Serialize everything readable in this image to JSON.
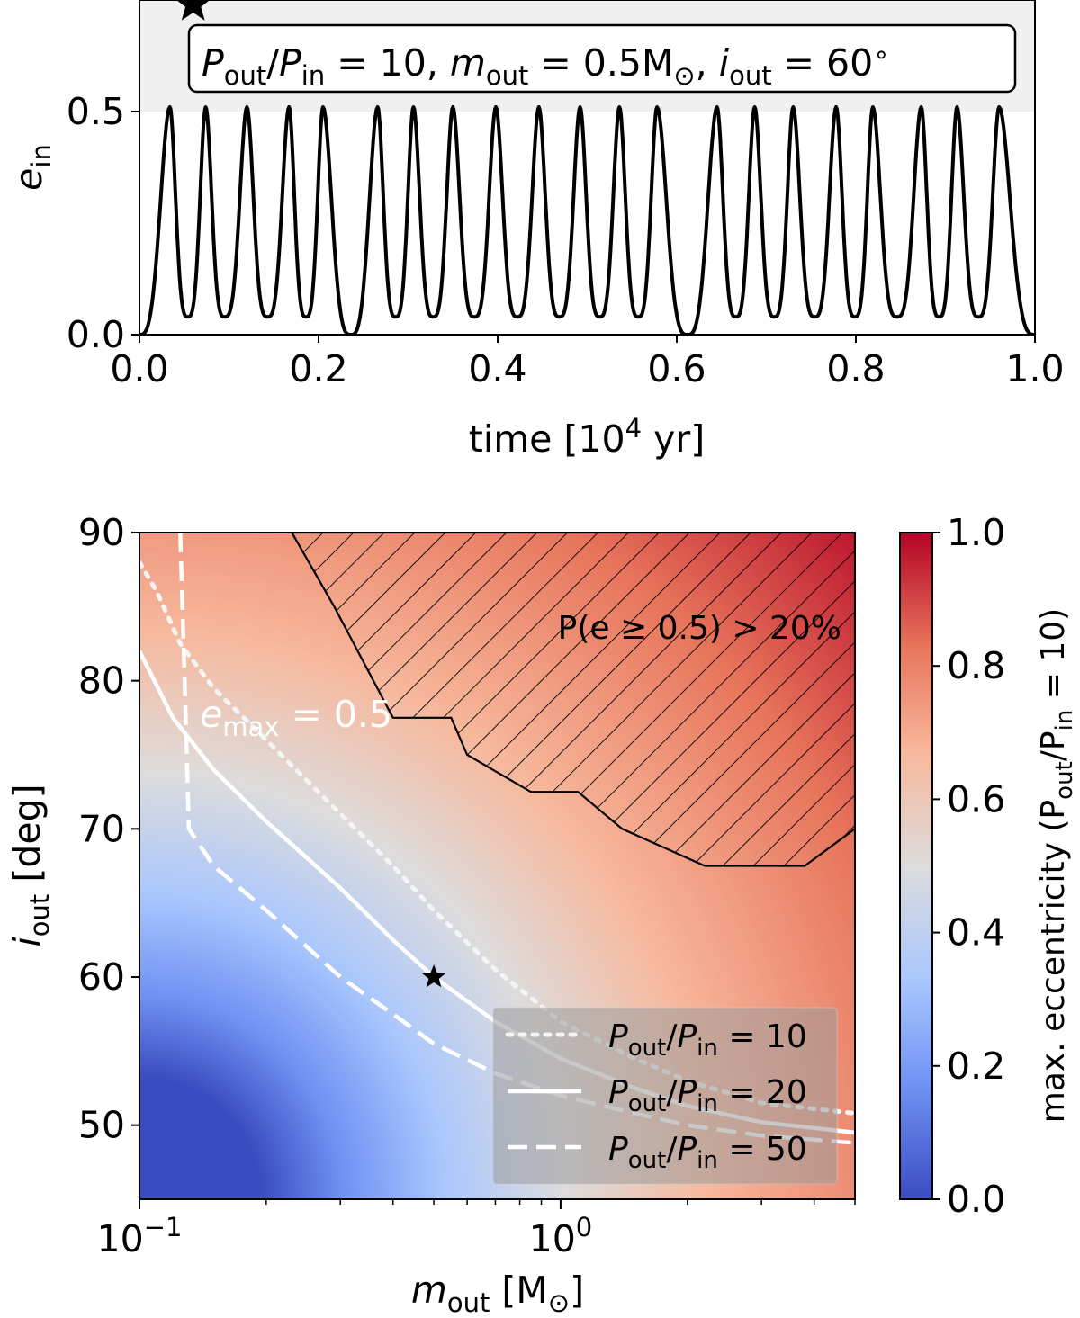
{
  "chart_data": [
    {
      "type": "line",
      "panel": "top",
      "title": "",
      "xlabel": "time [10",
      "xlabel_sup": "4",
      "xlabel_tail": " yr]",
      "ylabel": "e",
      "ylabel_sub": "in",
      "xlim": [
        0.0,
        1.0
      ],
      "ylim": [
        0.0,
        0.75
      ],
      "xticks": [
        "0.0",
        "0.2",
        "0.4",
        "0.6",
        "0.8",
        "1.0"
      ],
      "xtick_values": [
        0.0,
        0.2,
        0.4,
        0.6,
        0.8,
        1.0
      ],
      "yticks": [
        "0.0",
        "0.5"
      ],
      "ytick_values": [
        0.0,
        0.5
      ],
      "shaded_region": {
        "from": 0.5,
        "to": 0.75,
        "color": "#f0f0f0"
      },
      "series": [
        {
          "name": "e_in",
          "color": "#000000",
          "peak_times": [
            0.034,
            0.074,
            0.12,
            0.167,
            0.205,
            0.266,
            0.306,
            0.35,
            0.398,
            0.446,
            0.492,
            0.536,
            0.578,
            0.645,
            0.687,
            0.73,
            0.778,
            0.819,
            0.873,
            0.913,
            0.96
          ],
          "peak_value": 0.51,
          "trough_times": [
            0.0,
            0.054,
            0.095,
            0.143,
            0.186,
            0.236,
            0.286,
            0.328,
            0.374,
            0.422,
            0.469,
            0.514,
            0.557,
            0.612,
            0.666,
            0.709,
            0.754,
            0.799,
            0.846,
            0.893,
            0.937,
            1.0
          ],
          "trough_values": [
            0.0,
            0.04,
            0.04,
            0.04,
            0.04,
            0.0,
            0.04,
            0.04,
            0.04,
            0.04,
            0.04,
            0.04,
            0.04,
            0.0,
            0.04,
            0.04,
            0.04,
            0.04,
            0.04,
            0.04,
            0.04,
            0.0
          ]
        }
      ],
      "marker": {
        "symbol": "star",
        "x": 0.06,
        "y": 0.74
      },
      "annotation": {
        "p_sym": "P",
        "out": "out",
        "slash": "/",
        "in": "in",
        "eq10": " = 10, ",
        "m_sym": "m",
        "eq_mass": " = 0.5M",
        "sun": "⊙",
        "comma": ", ",
        "i_sym": "i",
        "eq_inc": " = 60",
        "deg": "∘"
      }
    },
    {
      "type": "heatmap",
      "panel": "bottom",
      "title": "",
      "xlabel": "m",
      "xlabel_sub": "out",
      "xlabel_tail": " [M",
      "xlabel_sun": "⊙",
      "xlabel_close": "]",
      "ylabel": "i",
      "ylabel_sub": "out",
      "ylabel_tail": " [deg]",
      "xscale": "log",
      "xlim": [
        0.1,
        5.0
      ],
      "ylim": [
        45,
        90
      ],
      "xtick_labels": [
        {
          "value": 0.1,
          "base": "10",
          "exp": "−1"
        },
        {
          "value": 1.0,
          "base": "10",
          "exp": "0"
        }
      ],
      "minor_xticks": [
        0.2,
        0.3,
        0.4,
        0.5,
        0.6,
        0.7,
        0.8,
        0.9,
        2,
        3,
        4,
        5
      ],
      "yticks": [
        "50",
        "60",
        "70",
        "80",
        "90"
      ],
      "ytick_values": [
        50,
        60,
        70,
        80,
        90
      ],
      "colorbar": {
        "label": "max. eccentricity (P",
        "label_sub1": "out",
        "label_mid": "/P",
        "label_sub2": "in",
        "label_tail": " = 10)",
        "range": [
          0.0,
          1.0
        ],
        "ticks": [
          "0.0",
          "0.2",
          "0.4",
          "0.6",
          "0.8",
          "1.0"
        ],
        "tick_values": [
          0.0,
          0.2,
          0.4,
          0.6,
          0.8,
          1.0
        ],
        "colormap": [
          "#3b4cc0",
          "#6f92f3",
          "#aac7fd",
          "#dddcdc",
          "#f7b89c",
          "#e7745b",
          "#b40426"
        ]
      },
      "contours": [
        {
          "name": "Pout/Pin = 10",
          "style": "dotted",
          "color": "#ffffff",
          "points": [
            [
              0.1,
              88
            ],
            [
              0.11,
              86
            ],
            [
              0.125,
              82.5
            ],
            [
              0.15,
              79.5
            ],
            [
              0.2,
              76
            ],
            [
              0.3,
              71
            ],
            [
              0.4,
              67.5
            ],
            [
              0.5,
              64.5
            ],
            [
              0.7,
              60.5
            ],
            [
              1.0,
              57
            ],
            [
              1.5,
              54.5
            ],
            [
              2.0,
              53
            ],
            [
              3.0,
              51.5
            ],
            [
              5.0,
              50.8
            ]
          ]
        },
        {
          "name": "Pout/Pin = 20",
          "style": "solid",
          "color": "#ffffff",
          "points": [
            [
              0.1,
              82
            ],
            [
              0.12,
              77.5
            ],
            [
              0.15,
              74
            ],
            [
              0.2,
              70.5
            ],
            [
              0.3,
              66
            ],
            [
              0.4,
              62.5
            ],
            [
              0.5,
              60
            ],
            [
              0.7,
              57
            ],
            [
              1.0,
              54.5
            ],
            [
              1.5,
              52.5
            ],
            [
              2.0,
              51.3
            ],
            [
              3.0,
              50.2
            ],
            [
              5.0,
              49.5
            ]
          ]
        },
        {
          "name": "Pout/Pin = 50",
          "style": "dashed",
          "color": "#ffffff",
          "points": [
            [
              0.125,
              90
            ],
            [
              0.128,
              80
            ],
            [
              0.131,
              70
            ],
            [
              0.15,
              67.5
            ],
            [
              0.2,
              64.5
            ],
            [
              0.3,
              60
            ],
            [
              0.4,
              57.5
            ],
            [
              0.5,
              55.5
            ],
            [
              0.7,
              53.5
            ],
            [
              1.0,
              52
            ],
            [
              1.5,
              50.8
            ],
            [
              2.0,
              50
            ],
            [
              3.0,
              49.3
            ],
            [
              5.0,
              48.8
            ]
          ]
        }
      ],
      "hatched_region": {
        "label": "P(e ≥ 0.5) > 20%",
        "boundary": [
          [
            0.23,
            90
          ],
          [
            0.29,
            85
          ],
          [
            0.4,
            77.5
          ],
          [
            0.55,
            77.5
          ],
          [
            0.6,
            75
          ],
          [
            0.85,
            72.5
          ],
          [
            1.1,
            72.5
          ],
          [
            1.4,
            70
          ],
          [
            2.2,
            67.5
          ],
          [
            3.8,
            67.5
          ],
          [
            5.0,
            70
          ],
          [
            5.0,
            90
          ]
        ]
      },
      "marker": {
        "symbol": "star",
        "x": 0.5,
        "y": 60
      },
      "annotation": {
        "text_e": "e",
        "text_sub": "max",
        "text_tail": " = 0.5"
      },
      "legend": {
        "location": "lower-right",
        "entries": [
          {
            "style": "dotted",
            "value": "10"
          },
          {
            "style": "solid",
            "value": "20"
          },
          {
            "style": "dashed",
            "value": "50"
          }
        ],
        "p_sym": "P",
        "out": "out",
        "in": "in"
      }
    }
  ]
}
